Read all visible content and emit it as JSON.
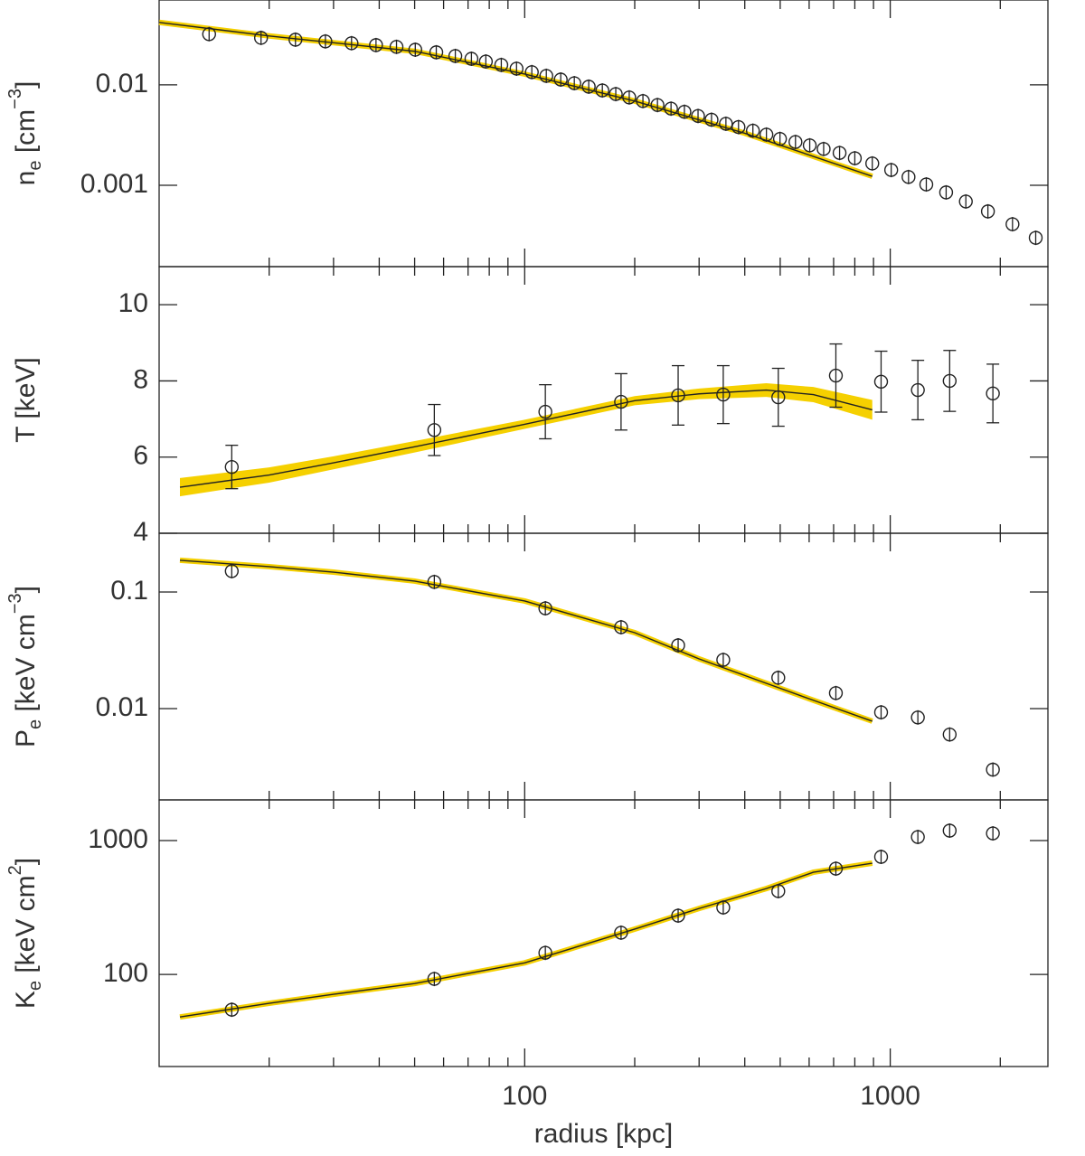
{
  "chart_data": [
    {
      "type": "scatter",
      "ylog": true,
      "xlim": [
        10,
        2700
      ],
      "ylim": [
        0.000155,
        0.07
      ],
      "yticks": [
        0.01,
        0.001
      ],
      "ylabel": {
        "base": "n",
        "sub": "e",
        "unit": " [cm",
        "sup": "−3",
        "close": "]"
      },
      "color": "#222",
      "band_color": "#f5d000",
      "x": [
        13.7,
        19.0,
        23.6,
        28.5,
        33.6,
        39.2,
        44.6,
        50.2,
        57.3,
        64.6,
        71.5,
        78.3,
        86.3,
        95.0,
        104.6,
        114.6,
        125.5,
        136.7,
        149.7,
        163.1,
        177.5,
        193.2,
        210.6,
        230.8,
        251.4,
        273.5,
        298.0,
        324.4,
        355.2,
        384.5,
        421.0,
        458.4,
        499.3,
        550.5,
        602.2,
        657.4,
        726.8,
        800,
        893,
        1006,
        1122,
        1255,
        1422,
        1610,
        1850,
        2160,
        2500
      ],
      "values": [
        0.032,
        0.0294,
        0.0282,
        0.0271,
        0.026,
        0.0249,
        0.0239,
        0.0224,
        0.0211,
        0.0194,
        0.0182,
        0.0171,
        0.0158,
        0.0145,
        0.0134,
        0.0123,
        0.0113,
        0.0104,
        0.0096,
        0.0088,
        0.0081,
        0.0075,
        0.0069,
        0.0063,
        0.0058,
        0.0054,
        0.0049,
        0.0045,
        0.0041,
        0.0038,
        0.0035,
        0.0032,
        0.0029,
        0.0027,
        0.0025,
        0.0023,
        0.0021,
        0.00186,
        0.00165,
        0.00142,
        0.00121,
        0.00102,
        0.00085,
        0.00069,
        0.00055,
        0.00041,
        0.0003
      ],
      "model": {
        "x": [
          10,
          20,
          50,
          100,
          200,
          400,
          893
        ],
        "values": [
          0.0419,
          0.0307,
          0.0216,
          0.0128,
          0.0069,
          0.0033,
          0.00123
        ]
      }
    },
    {
      "type": "scatter",
      "ylog": false,
      "xlim": [
        10,
        2700
      ],
      "ylim": [
        4,
        11
      ],
      "yticks": [
        4,
        6,
        8,
        10
      ],
      "ylabel": {
        "base": "T [keV]"
      },
      "color": "#222",
      "band_color": "#f5d000",
      "x": [
        15.8,
        56.6,
        113.9,
        183.5,
        262.9,
        349.3,
        494,
        710,
        944,
        1190,
        1454,
        1909
      ],
      "values": [
        5.74,
        6.71,
        7.19,
        7.45,
        7.62,
        7.64,
        7.57,
        8.14,
        7.98,
        7.76,
        8.0,
        7.67
      ],
      "errors": [
        0.57,
        0.67,
        0.71,
        0.74,
        0.78,
        0.76,
        0.76,
        0.83,
        0.8,
        0.78,
        0.8,
        0.77
      ],
      "model": {
        "x": [
          11.4,
          20,
          30,
          50,
          100,
          200,
          300,
          458,
          616,
          893
        ],
        "values": [
          5.21,
          5.53,
          5.85,
          6.27,
          6.86,
          7.48,
          7.66,
          7.76,
          7.64,
          7.24
        ],
        "lower": [
          4.97,
          5.33,
          5.68,
          6.12,
          6.74,
          7.36,
          7.52,
          7.58,
          7.44,
          6.98
        ],
        "upper": [
          5.45,
          5.73,
          6.02,
          6.42,
          6.98,
          7.6,
          7.8,
          7.94,
          7.84,
          7.5
        ]
      }
    },
    {
      "type": "scatter",
      "ylog": true,
      "xlim": [
        10,
        2700
      ],
      "ylim": [
        0.00165,
        0.319
      ],
      "yticks": [
        0.1,
        0.01
      ],
      "ylabel": {
        "base": "P",
        "sub": "e",
        "unit": " [keV cm",
        "sup": "−3",
        "close": "]"
      },
      "color": "#222",
      "band_color": "#f5d000",
      "x": [
        15.8,
        56.6,
        113.9,
        183.5,
        262.9,
        349.3,
        494,
        710,
        944,
        1190,
        1454,
        1909
      ],
      "values": [
        0.151,
        0.122,
        0.0725,
        0.0499,
        0.0349,
        0.0262,
        0.0184,
        0.0136,
        0.0093,
        0.0084,
        0.006,
        0.003
      ],
      "model": {
        "x": [
          11.4,
          20,
          30,
          50,
          100,
          200,
          300,
          458,
          616,
          893
        ],
        "values": [
          0.187,
          0.165,
          0.148,
          0.124,
          0.0837,
          0.0448,
          0.0267,
          0.0165,
          0.0118,
          0.0078
        ]
      }
    },
    {
      "type": "scatter",
      "ylog": true,
      "xlim": [
        10,
        2700
      ],
      "ylim": [
        20.5,
        2014
      ],
      "yticks": [
        1000,
        100
      ],
      "ylabel": {
        "base": "K",
        "sub": "e",
        "unit": " [keV cm",
        "sup": "2",
        "close": "]"
      },
      "xlabel": "radius [kpc]",
      "xticks": [
        100,
        1000
      ],
      "xticks_minor": [
        20,
        30,
        40,
        50,
        60,
        70,
        80,
        90,
        200,
        300,
        400,
        500,
        600,
        700,
        800,
        900,
        2000
      ],
      "color": "#222",
      "band_color": "#f5d000",
      "x": [
        15.8,
        56.6,
        113.9,
        183.5,
        262.9,
        349.3,
        494,
        710,
        944,
        1190,
        1454,
        1909
      ],
      "values": [
        54.5,
        92.5,
        145,
        205,
        275,
        316,
        419,
        617,
        756,
        1064,
        1187,
        1132
      ],
      "model": {
        "x": [
          11.4,
          20,
          30,
          50,
          100,
          200,
          300,
          458,
          616,
          893
        ],
        "values": [
          48.1,
          60.8,
          71,
          85.5,
          122,
          218,
          311,
          438,
          580,
          678
        ]
      }
    }
  ]
}
